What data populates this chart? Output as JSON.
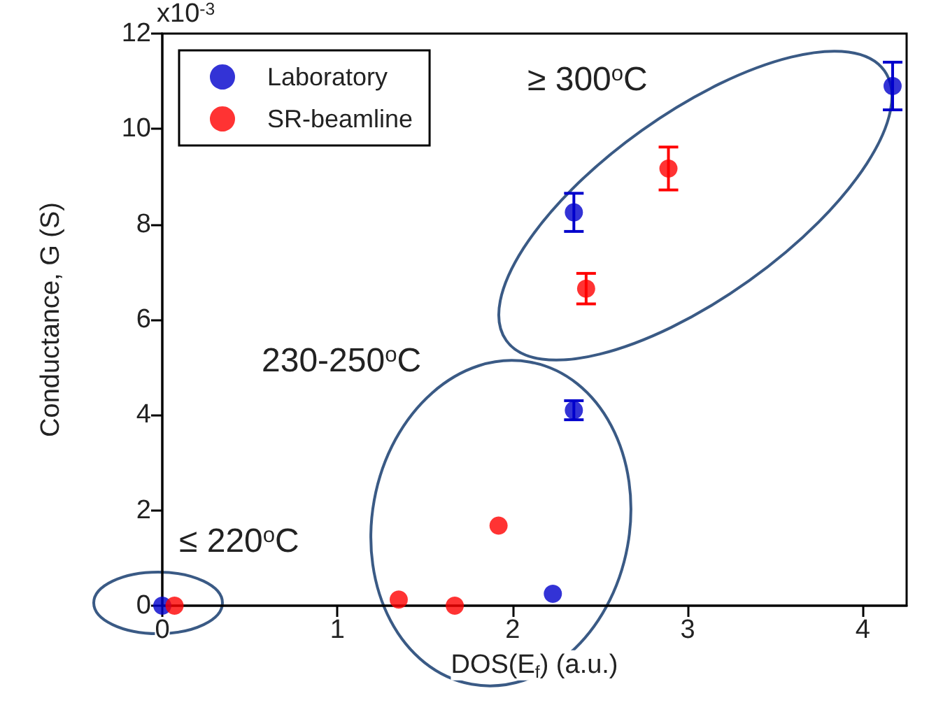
{
  "chart_data": {
    "type": "scatter",
    "xlabel": "DOS(E$_{f}$) (a.u.)",
    "ylabel": "Conductance, G (S)",
    "xlim": [
      0,
      4.25
    ],
    "xticks": [
      0,
      1,
      2,
      3,
      4
    ],
    "ylim": [
      0,
      12
    ],
    "yticks": [
      0,
      2,
      4,
      6,
      8,
      10,
      12
    ],
    "grid": false,
    "legend": "top left",
    "marker": "circle",
    "series": [
      {
        "name": "Laboratory",
        "color": "#0000cc",
        "x": [
          0,
          2.23,
          2.35,
          2.35,
          4.17
        ],
        "values": [
          0,
          0.25,
          4.1,
          8.25,
          10.9
        ],
        "errors": [
          null,
          null,
          0.2,
          0.4,
          0.5
        ]
      },
      {
        "name": "SR-beamline",
        "color": "#ff0000",
        "x": [
          0.07,
          1.35,
          1.67,
          1.92,
          2.42,
          2.89
        ],
        "values": [
          0,
          0.13,
          0,
          1.68,
          6.65,
          9.17
        ],
        "errors": [
          null,
          null,
          null,
          null,
          0.32,
          0.45
        ]
      }
    ],
    "annotations": [
      "≥ 300$^{o}$C",
      "230-250$^{o}$C",
      "≤ 220$^{o}$C",
      "x10$^{-3}$"
    ]
  }
}
